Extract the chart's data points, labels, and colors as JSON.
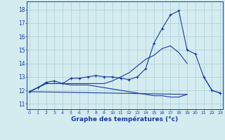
{
  "xlabel": "Graphe des températures (°c)",
  "background_color": "#d4ecf0",
  "line_color": "#1a3a9e",
  "grid_color": "#aacdd4",
  "x_ticks": [
    0,
    1,
    2,
    3,
    4,
    5,
    6,
    7,
    8,
    9,
    10,
    11,
    12,
    13,
    14,
    15,
    16,
    17,
    18,
    19,
    20,
    21,
    22,
    23
  ],
  "y_ticks": [
    11,
    12,
    13,
    14,
    15,
    16,
    17,
    18
  ],
  "ylim": [
    10.6,
    18.6
  ],
  "xlim": [
    -0.3,
    23.3
  ],
  "line1_x": [
    0,
    1,
    2,
    3,
    4,
    5,
    6,
    7,
    8,
    9,
    10,
    11,
    12,
    13,
    14,
    15,
    16,
    17,
    18,
    19,
    20,
    21,
    22,
    23
  ],
  "line1_y": [
    11.9,
    12.2,
    12.6,
    12.7,
    12.5,
    12.9,
    12.9,
    13.0,
    13.1,
    13.0,
    13.0,
    12.9,
    12.8,
    13.0,
    13.6,
    15.5,
    16.6,
    17.6,
    17.9,
    15.0,
    14.7,
    13.0,
    12.0,
    11.8
  ],
  "line2_x": [
    0,
    1,
    2,
    3,
    4,
    5,
    6,
    7,
    8,
    9,
    10,
    11,
    12,
    13,
    14,
    15,
    16,
    17,
    18,
    19
  ],
  "line2_y": [
    11.9,
    12.2,
    12.5,
    12.5,
    12.5,
    12.5,
    12.5,
    12.5,
    12.5,
    12.5,
    12.7,
    13.0,
    13.3,
    13.8,
    14.3,
    14.6,
    15.1,
    15.3,
    14.8,
    14.0
  ],
  "line3_x": [
    0,
    1,
    2,
    3,
    4,
    5,
    6,
    7,
    8,
    9,
    10,
    11,
    12,
    13,
    14,
    15,
    16,
    17,
    18,
    19
  ],
  "line3_y": [
    11.9,
    12.2,
    12.5,
    12.5,
    12.5,
    12.4,
    12.4,
    12.4,
    12.3,
    12.2,
    12.1,
    12.0,
    11.9,
    11.8,
    11.7,
    11.6,
    11.6,
    11.5,
    11.5,
    11.7
  ],
  "line4_x": [
    19,
    20,
    21,
    22,
    23
  ],
  "line4_y": [
    11.7,
    null,
    13.0,
    12.0,
    11.8
  ],
  "line5_x": [
    0,
    19
  ],
  "line5_y": [
    11.9,
    11.7
  ]
}
